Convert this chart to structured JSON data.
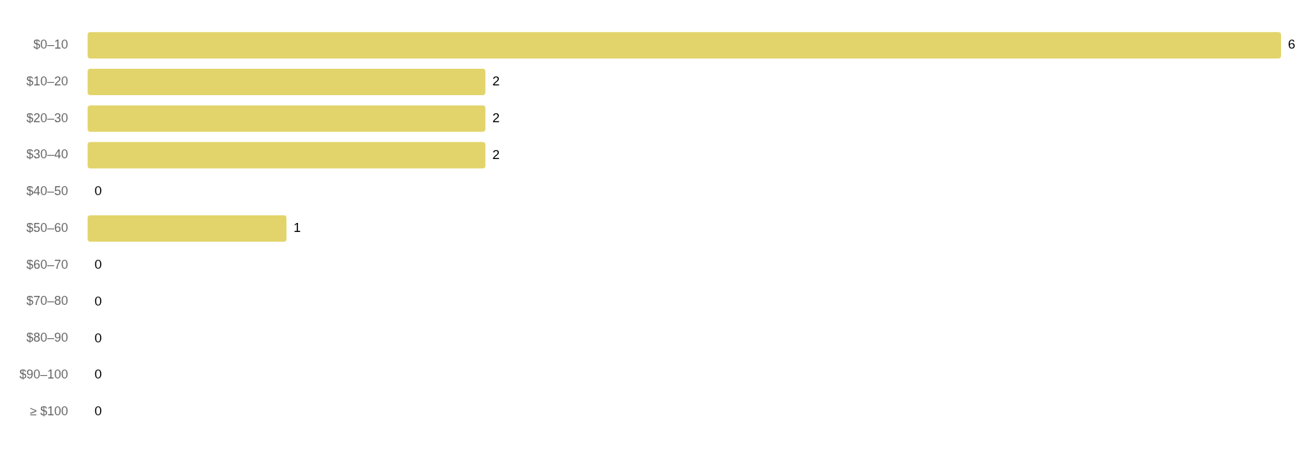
{
  "chart_data": {
    "type": "bar",
    "orientation": "horizontal",
    "categories": [
      "$0–10",
      "$10–20",
      "$20–30",
      "$30–40",
      "$40–50",
      "$50–60",
      "$60–70",
      "$70–80",
      "$80–90",
      "$90–100",
      "≥ $100"
    ],
    "values": [
      6,
      2,
      2,
      2,
      0,
      1,
      0,
      0,
      0,
      0,
      0
    ],
    "color": "#e2d46a",
    "data_labels": true,
    "grid": false,
    "legend": false
  }
}
